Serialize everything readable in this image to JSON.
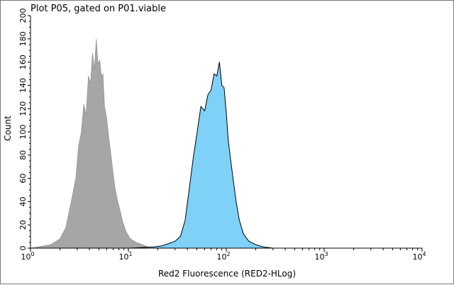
{
  "chart_data": {
    "type": "area",
    "title": "Plot P05, gated on P01.viable",
    "xlabel": "Red2 Fluorescence (RED2-HLog)",
    "ylabel": "Count",
    "x_scale": "log",
    "xlim": [
      1,
      10000
    ],
    "ylim": [
      0,
      200
    ],
    "x_ticks": [
      {
        "base": "10",
        "exp": "0"
      },
      {
        "base": "10",
        "exp": "1"
      },
      {
        "base": "10",
        "exp": "2"
      },
      {
        "base": "10",
        "exp": "3"
      },
      {
        "base": "10",
        "exp": "4"
      }
    ],
    "y_ticks": [
      "0",
      "20",
      "40",
      "60",
      "80",
      "100",
      "120",
      "140",
      "160",
      "180",
      "200"
    ],
    "grid": false,
    "series": [
      {
        "color": "#a6a6a6",
        "outline": "#8c8c8c",
        "x": [
          1.0,
          1.6,
          2.0,
          2.3,
          2.6,
          2.9,
          3.1,
          3.3,
          3.5,
          3.7,
          3.9,
          4.1,
          4.3,
          4.5,
          4.7,
          4.9,
          5.1,
          5.3,
          5.5,
          5.7,
          6.0,
          6.3,
          6.6,
          6.9,
          7.3,
          7.7,
          8.2,
          8.8,
          9.5,
          10.5,
          12.0,
          14.0,
          16.0,
          20.0
        ],
        "values": [
          0,
          3,
          8,
          18,
          40,
          60,
          88,
          100,
          124,
          115,
          148,
          142,
          168,
          154,
          180,
          158,
          162,
          148,
          150,
          122,
          112,
          96,
          82,
          68,
          52,
          42,
          33,
          22,
          14,
          8,
          5,
          3,
          1,
          0
        ]
      },
      {
        "color": "#7fd1f7",
        "outline": "#000000",
        "x": [
          10.0,
          18.0,
          22.0,
          26.0,
          30.0,
          34.0,
          38.0,
          42.0,
          46.0,
          50.0,
          55.0,
          60.0,
          65.0,
          70.0,
          75.0,
          80.0,
          85.0,
          90.0,
          95.0,
          100.0,
          105.0,
          110.0,
          118.0,
          126.0,
          136.0,
          150.0,
          170.0,
          200.0,
          240.0,
          300.0,
          400.0
        ],
        "values": [
          0,
          1,
          2,
          4,
          6,
          10,
          24,
          52,
          78,
          98,
          122,
          118,
          132,
          136,
          150,
          148,
          160,
          140,
          138,
          116,
          92,
          78,
          58,
          40,
          24,
          12,
          6,
          3,
          1,
          0,
          0
        ]
      }
    ]
  }
}
